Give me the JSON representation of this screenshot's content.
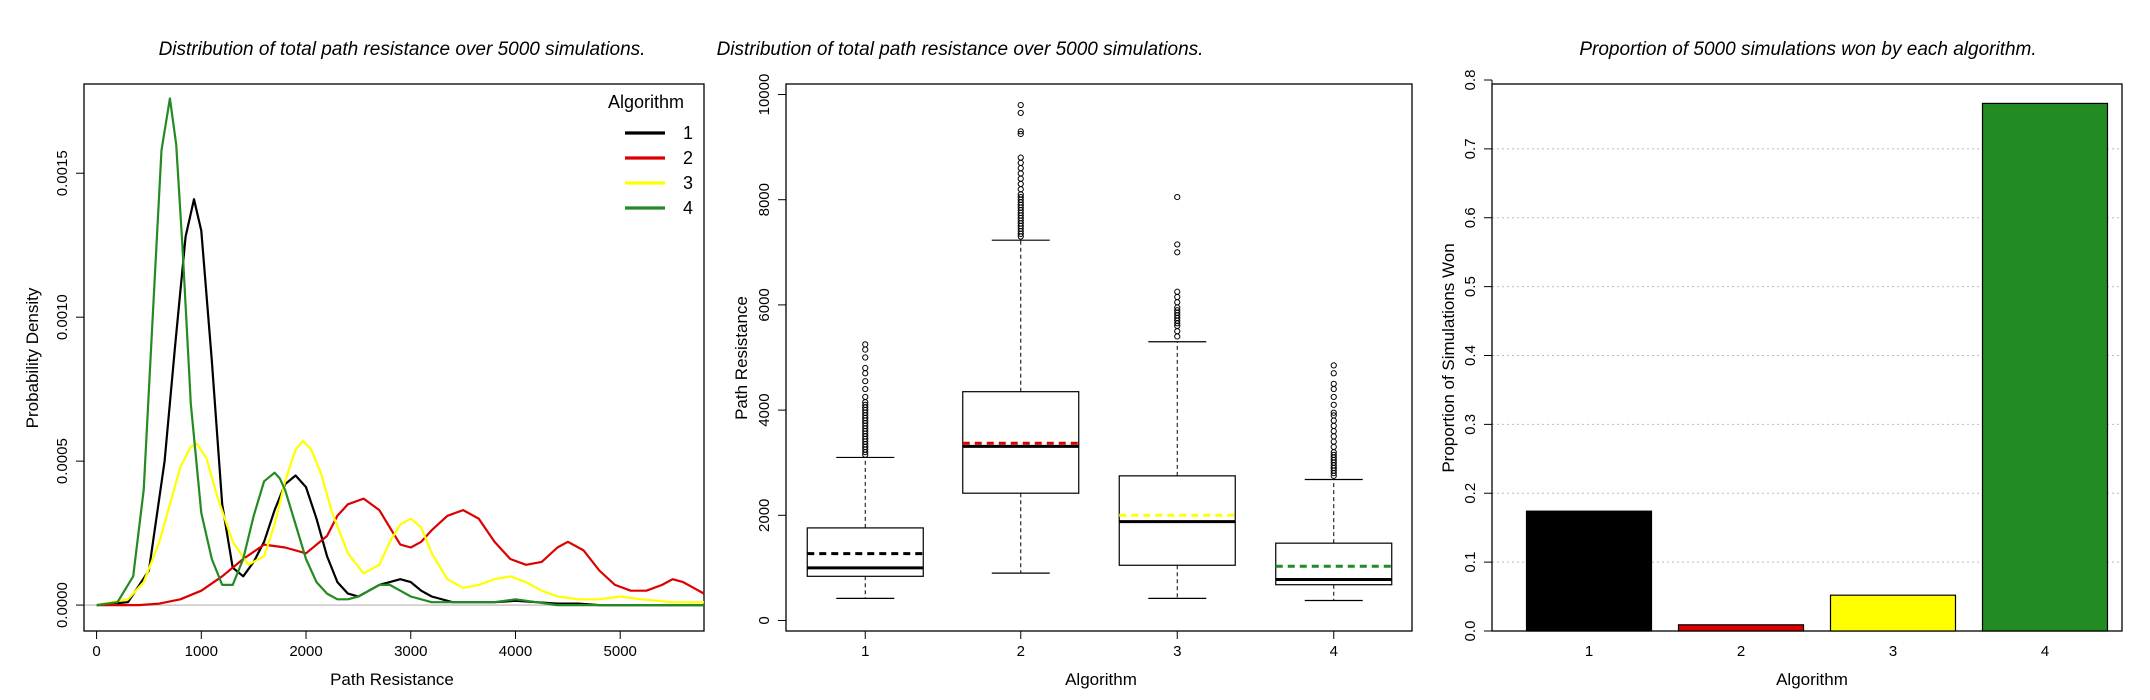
{
  "colors": {
    "alg1": "#000000",
    "alg2": "#dd0000",
    "alg3": "#ffff00",
    "alg4": "#228B22"
  },
  "density_chart": {
    "type": "line",
    "title": "Distribution of total path resistance over 5000 simulations.",
    "xlabel": "Path Resistance",
    "ylabel": "Probability Density",
    "xlim": [
      -120,
      5800
    ],
    "ylim": [
      -9e-05,
      0.00181
    ],
    "x_ticks": [
      0,
      1000,
      2000,
      3000,
      4000,
      5000
    ],
    "x_tick_labels": [
      "0",
      "1000",
      "2000",
      "3000",
      "4000",
      "5000"
    ],
    "y_ticks": [
      0,
      0.0005,
      0.001,
      0.0015
    ],
    "y_tick_labels": [
      "0.0000",
      "0.0005",
      "0.0010",
      "0.0015"
    ],
    "legend_title": "Algorithm",
    "legend_position": "top-right",
    "series": [
      {
        "name": "1",
        "color": "#000000",
        "x": [
          0,
          300,
          500,
          650,
          750,
          850,
          930,
          1000,
          1100,
          1200,
          1300,
          1400,
          1500,
          1600,
          1700,
          1800,
          1900,
          2000,
          2100,
          2200,
          2300,
          2400,
          2500,
          2600,
          2700,
          2800,
          2900,
          3000,
          3100,
          3200,
          3400,
          3600,
          3800,
          4000,
          4200,
          4400,
          4600,
          4800,
          5000,
          5400,
          5800
        ],
        "y": [
          0,
          1e-05,
          0.00012,
          0.0005,
          0.0009,
          0.00128,
          0.00141,
          0.0013,
          0.00085,
          0.00035,
          0.00013,
          0.0001,
          0.00015,
          0.00022,
          0.00033,
          0.00042,
          0.00045,
          0.00041,
          0.0003,
          0.00017,
          8e-05,
          4e-05,
          3e-05,
          5e-05,
          7e-05,
          8e-05,
          9e-05,
          8e-05,
          5e-05,
          3e-05,
          1e-05,
          1e-05,
          1e-05,
          1.5e-05,
          1e-05,
          5e-06,
          5e-06,
          0,
          0,
          0,
          0
        ]
      },
      {
        "name": "2",
        "color": "#dd0000",
        "x": [
          0,
          400,
          600,
          800,
          1000,
          1200,
          1400,
          1600,
          1800,
          2000,
          2200,
          2300,
          2400,
          2550,
          2700,
          2800,
          2900,
          3000,
          3100,
          3200,
          3350,
          3500,
          3650,
          3800,
          3950,
          4100,
          4250,
          4400,
          4500,
          4650,
          4800,
          4950,
          5100,
          5250,
          5400,
          5500,
          5600,
          5700,
          5800
        ],
        "y": [
          0,
          0,
          5e-06,
          2e-05,
          5e-05,
          0.0001,
          0.00016,
          0.00021,
          0.0002,
          0.00018,
          0.00024,
          0.00031,
          0.00035,
          0.00037,
          0.00033,
          0.00027,
          0.00021,
          0.0002,
          0.00022,
          0.00026,
          0.00031,
          0.00033,
          0.0003,
          0.00022,
          0.00016,
          0.00014,
          0.00015,
          0.0002,
          0.00022,
          0.00019,
          0.00012,
          7e-05,
          5e-05,
          5e-05,
          7e-05,
          9e-05,
          8e-05,
          6e-05,
          4e-05
        ]
      },
      {
        "name": "3",
        "color": "#ffff00",
        "x": [
          0,
          300,
          450,
          600,
          700,
          800,
          900,
          960,
          1050,
          1150,
          1300,
          1450,
          1600,
          1700,
          1800,
          1900,
          1970,
          2050,
          2150,
          2250,
          2400,
          2550,
          2700,
          2800,
          2900,
          3000,
          3100,
          3200,
          3350,
          3500,
          3650,
          3800,
          3950,
          4100,
          4250,
          4400,
          4600,
          4800,
          5000,
          5200,
          5500,
          5800
        ],
        "y": [
          0,
          2e-05,
          8e-05,
          0.00022,
          0.00035,
          0.00048,
          0.00055,
          0.00056,
          0.00051,
          0.00038,
          0.00022,
          0.00014,
          0.00017,
          0.00028,
          0.00043,
          0.00054,
          0.00057,
          0.00054,
          0.00045,
          0.00032,
          0.00018,
          0.00011,
          0.00014,
          0.00022,
          0.00028,
          0.0003,
          0.00027,
          0.00018,
          9e-05,
          6e-05,
          7e-05,
          9e-05,
          0.0001,
          8e-05,
          5e-05,
          3e-05,
          2e-05,
          2e-05,
          3e-05,
          2e-05,
          1e-05,
          1e-05
        ]
      },
      {
        "name": "4",
        "color": "#228B22",
        "x": [
          0,
          200,
          350,
          450,
          550,
          620,
          700,
          760,
          820,
          900,
          1000,
          1100,
          1200,
          1300,
          1400,
          1500,
          1600,
          1700,
          1750,
          1800,
          1900,
          2000,
          2100,
          2200,
          2300,
          2400,
          2500,
          2600,
          2700,
          2800,
          2900,
          3000,
          3200,
          3400,
          3600,
          3800,
          4000,
          4200,
          4400,
          4800,
          5200,
          5800
        ],
        "y": [
          0,
          1e-05,
          0.0001,
          0.0004,
          0.0011,
          0.00158,
          0.00176,
          0.0016,
          0.00125,
          0.0007,
          0.00032,
          0.00016,
          7e-05,
          7e-05,
          0.00016,
          0.00031,
          0.00043,
          0.00046,
          0.00044,
          0.0004,
          0.00028,
          0.00016,
          8e-05,
          4e-05,
          2e-05,
          2e-05,
          3e-05,
          5e-05,
          7e-05,
          7e-05,
          5e-05,
          3e-05,
          1e-05,
          1e-05,
          1e-05,
          1e-05,
          2e-05,
          1e-05,
          0,
          0,
          0,
          0
        ]
      }
    ]
  },
  "box_chart": {
    "type": "box",
    "title": "Distribution of total path resistance over 5000 simulations.",
    "xlabel": "Algorithm",
    "ylabel": "Path Resistance",
    "categories": [
      "1",
      "2",
      "3",
      "4"
    ],
    "ylim": [
      -200,
      10200
    ],
    "y_ticks": [
      0,
      2000,
      4000,
      6000,
      8000,
      10000
    ],
    "y_tick_labels": [
      "0",
      "2000",
      "4000",
      "6000",
      "8000",
      "10000"
    ],
    "boxes": [
      {
        "category": "1",
        "color": "#000000",
        "whisker_low": 420,
        "q1": 840,
        "median": 1000,
        "q3": 1760,
        "whisker_high": 3100,
        "mean": 1270,
        "outliers": [
          3150,
          3200,
          3250,
          3300,
          3350,
          3400,
          3450,
          3500,
          3550,
          3600,
          3650,
          3700,
          3750,
          3800,
          3850,
          3900,
          3950,
          4000,
          4050,
          4100,
          4150,
          4250,
          4400,
          4550,
          4700,
          4800,
          5000,
          5150,
          5250
        ]
      },
      {
        "category": "2",
        "color": "#dd0000",
        "whisker_low": 900,
        "q1": 2420,
        "median": 3310,
        "q3": 4350,
        "whisker_high": 7230,
        "mean": 3370,
        "outliers": [
          7300,
          7350,
          7400,
          7450,
          7500,
          7550,
          7600,
          7650,
          7700,
          7750,
          7800,
          7850,
          7900,
          7950,
          8000,
          8050,
          8100,
          8200,
          8300,
          8400,
          8500,
          8600,
          8700,
          8800,
          9250,
          9300,
          9650,
          9800
        ]
      },
      {
        "category": "3",
        "color": "#ffff00",
        "whisker_low": 420,
        "q1": 1050,
        "median": 1880,
        "q3": 2750,
        "whisker_high": 5300,
        "mean": 2000,
        "outliers": [
          5400,
          5500,
          5600,
          5650,
          5700,
          5750,
          5800,
          5850,
          5900,
          5950,
          6050,
          6150,
          6250,
          7000,
          7150,
          8050
        ]
      },
      {
        "category": "4",
        "color": "#228B22",
        "whisker_low": 380,
        "q1": 680,
        "median": 780,
        "q3": 1470,
        "whisker_high": 2680,
        "mean": 1030,
        "outliers": [
          2750,
          2800,
          2850,
          2900,
          2950,
          3000,
          3050,
          3100,
          3150,
          3200,
          3300,
          3400,
          3500,
          3600,
          3700,
          3800,
          3900,
          3950,
          4100,
          4250,
          4400,
          4500,
          4700,
          4850
        ]
      }
    ]
  },
  "bar_chart": {
    "type": "bar",
    "title": "Proportion of 5000 simulations won by each algorithm.",
    "xlabel": "Algorithm",
    "ylabel": "Proportion of Simulations Won",
    "categories": [
      "1",
      "2",
      "3",
      "4"
    ],
    "values": [
      0.174,
      0.009,
      0.052,
      0.766
    ],
    "bar_colors": [
      "#000000",
      "#dd0000",
      "#ffff00",
      "#228B22"
    ],
    "ylim": [
      0,
      0.8
    ],
    "grid": true,
    "y_ticks": [
      0,
      0.1,
      0.2,
      0.3,
      0.4,
      0.5,
      0.6,
      0.7,
      0.8
    ],
    "y_tick_labels": [
      "0.0",
      "0.1",
      "0.2",
      "0.3",
      "0.4",
      "0.5",
      "0.6",
      "0.7",
      "0.8"
    ]
  }
}
